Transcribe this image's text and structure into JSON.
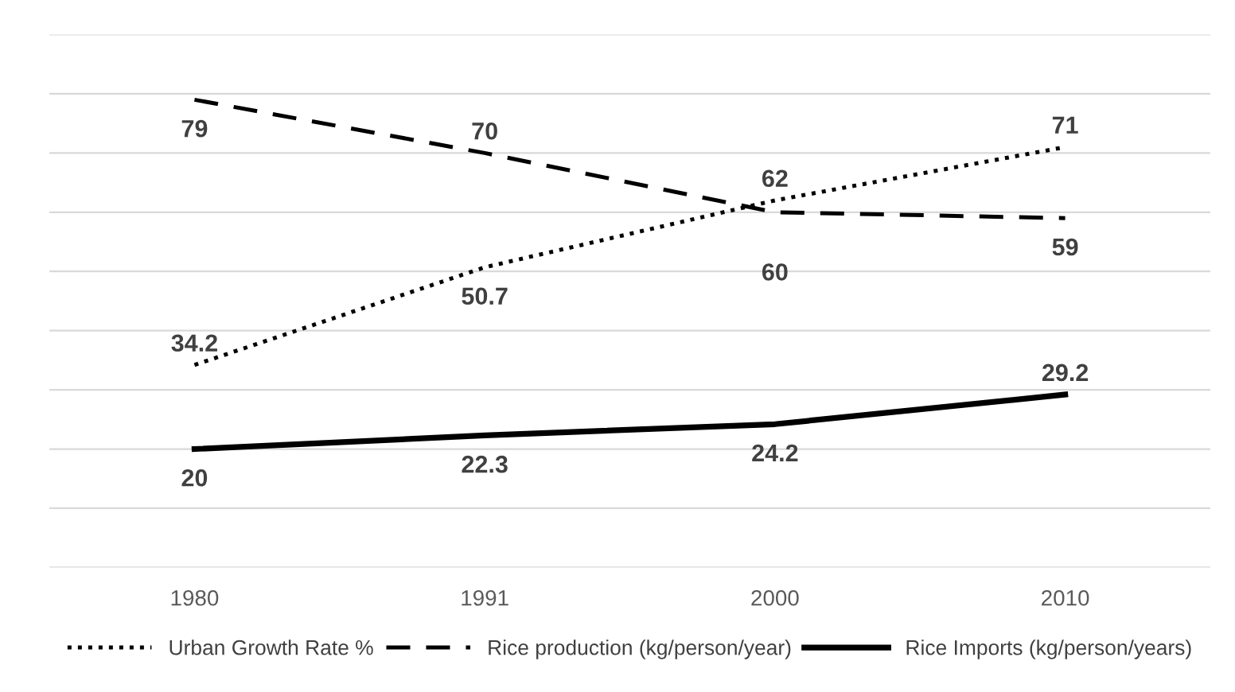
{
  "chart_data": {
    "type": "line",
    "categories": [
      "1980",
      "1991",
      "2000",
      "2010"
    ],
    "series": [
      {
        "name": "Urban Growth Rate %",
        "color": "#000000",
        "values": [
          34.2,
          50.7,
          62,
          71
        ],
        "line_style": "dotted"
      },
      {
        "name": "Rice production (kg/person/year)",
        "color": "#000000",
        "values": [
          79,
          70,
          60,
          59
        ],
        "line_style": "dashed"
      },
      {
        "name": "Rice Imports (kg/person/years)",
        "color": "#000000",
        "values": [
          20,
          22.3,
          24.2,
          29.2
        ],
        "line_style": "solid"
      }
    ],
    "ylim": [
      0,
      90
    ],
    "yticks": [
      {
        "value": 0,
        "label": null
      },
      {
        "value": 10,
        "label": null
      },
      {
        "value": 20,
        "label": null
      },
      {
        "value": 30,
        "label": null
      },
      {
        "value": 40,
        "label": null
      },
      {
        "value": 50,
        "label": null
      },
      {
        "value": 60,
        "label": null
      },
      {
        "value": 70,
        "label": null
      },
      {
        "value": 80,
        "label": null
      },
      {
        "value": 90,
        "label": null
      }
    ],
    "tick_labels": "x",
    "grid": "y",
    "legend": "bottom",
    "data_labels": true,
    "marker": "none"
  }
}
